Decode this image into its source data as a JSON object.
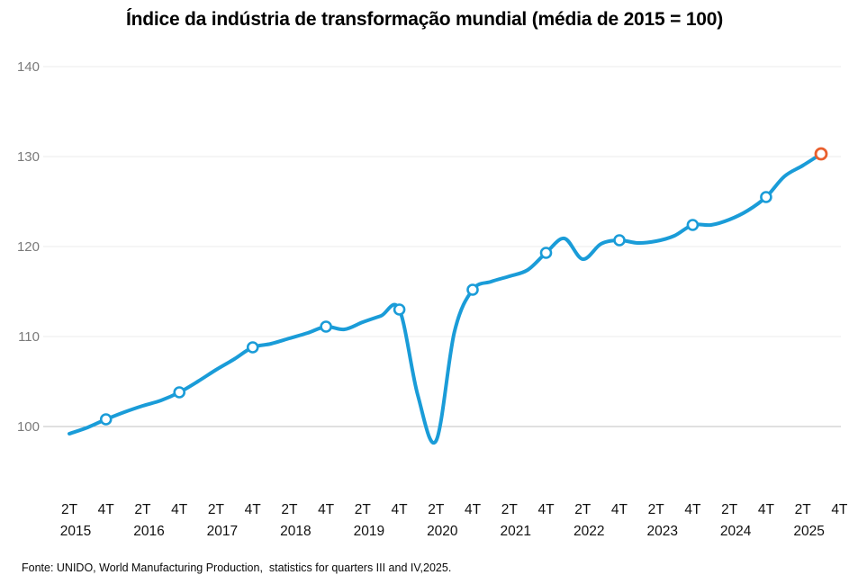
{
  "title": "Índice da indústria de transformação mundial (média de 2015 = 100)",
  "source_note": "Fonte: UNIDO, World Manufacturing Production,  statistics for quarters III and IV,2025.",
  "colors": {
    "line": "#1A9CD8",
    "marker_fill": "#FFFFFF",
    "final_marker_stroke": "#E95F2D",
    "gridline": "#EBEBEB",
    "baseline_gridline": "#C2C2C2",
    "y_label": "#7A7A7A",
    "x_label": "#101010",
    "title_color": "#000000"
  },
  "chart_data": {
    "type": "line",
    "title": "Índice da indústria de transformação mundial (média de 2015 = 100)",
    "xlabel": "",
    "ylabel": "",
    "ylim": [
      97,
      141
    ],
    "yticks": [
      100,
      110,
      120,
      130,
      140
    ],
    "grid": "horizontal-only",
    "legend_position": "none",
    "x": [
      "2T 2015",
      "3T 2015",
      "4T 2015",
      "1T 2016",
      "2T 2016",
      "3T 2016",
      "4T 2016",
      "1T 2017",
      "2T 2017",
      "3T 2017",
      "4T 2017",
      "1T 2018",
      "2T 2018",
      "3T 2018",
      "4T 2018",
      "1T 2019",
      "2T 2019",
      "3T 2019",
      "4T 2019",
      "1T 2020",
      "2T 2020",
      "3T 2020",
      "4T 2020",
      "1T 2021",
      "2T 2021",
      "3T 2021",
      "4T 2021",
      "1T 2022",
      "2T 2022",
      "3T 2022",
      "4T 2022",
      "1T 2023",
      "2T 2023",
      "3T 2023",
      "4T 2023",
      "1T 2024",
      "2T 2024",
      "3T 2024",
      "4T 2024",
      "1T 2025",
      "2T 2025",
      "3T 2025"
    ],
    "series": [
      {
        "name": "Índice da indústria de transformação mundial",
        "values": [
          99.2,
          99.9,
          100.8,
          101.6,
          102.3,
          102.9,
          103.8,
          105.0,
          106.3,
          107.5,
          108.8,
          109.2,
          109.8,
          110.4,
          111.1,
          110.8,
          111.6,
          112.3,
          113.0,
          103.5,
          98.4,
          110.5,
          115.2,
          116.1,
          116.7,
          117.4,
          119.3,
          120.9,
          118.6,
          120.3,
          120.7,
          120.4,
          120.6,
          121.2,
          122.4,
          122.4,
          123.0,
          124.0,
          125.5,
          127.8,
          129.0,
          130.3
        ]
      }
    ],
    "marker_indices": [
      2,
      6,
      10,
      14,
      18,
      22,
      26,
      30,
      34,
      38
    ],
    "marker_note": "white circles at 4T of each year",
    "final_marker_index": 41,
    "final_marker_value": 130.3,
    "x_ticks": [
      {
        "label": "2T",
        "year": "2015"
      },
      {
        "label": "4T",
        "year": ""
      },
      {
        "label": "2T",
        "year": "2016"
      },
      {
        "label": "4T",
        "year": ""
      },
      {
        "label": "2T",
        "year": "2017"
      },
      {
        "label": "4T",
        "year": ""
      },
      {
        "label": "2T",
        "year": "2018"
      },
      {
        "label": "4T",
        "year": ""
      },
      {
        "label": "2T",
        "year": "2019"
      },
      {
        "label": "4T",
        "year": ""
      },
      {
        "label": "2T",
        "year": "2020"
      },
      {
        "label": "4T",
        "year": ""
      },
      {
        "label": "2T",
        "year": "2021"
      },
      {
        "label": "4T",
        "year": ""
      },
      {
        "label": "2T",
        "year": "2022"
      },
      {
        "label": "4T",
        "year": ""
      },
      {
        "label": "2T",
        "year": "2023"
      },
      {
        "label": "4T",
        "year": ""
      },
      {
        "label": "2T",
        "year": "2024"
      },
      {
        "label": "4T",
        "year": ""
      },
      {
        "label": "2T",
        "year": "2025"
      },
      {
        "label": "4T",
        "year": ""
      }
    ]
  }
}
